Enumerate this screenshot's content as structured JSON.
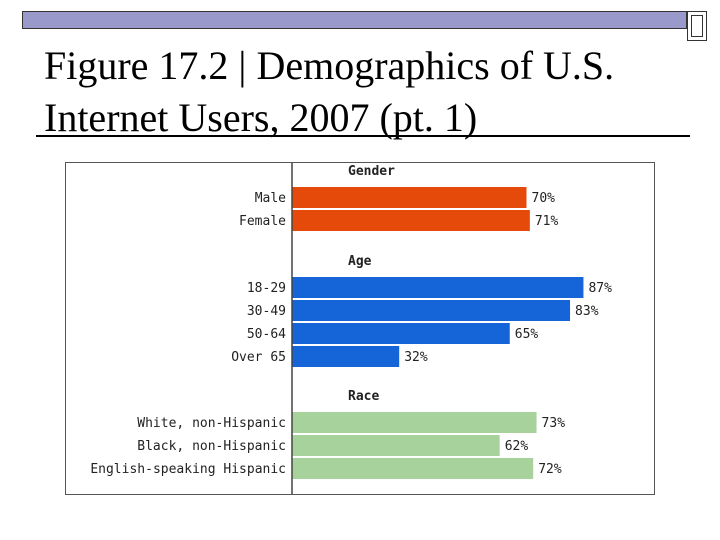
{
  "slide": {
    "title_line1": "Figure 17.2 | Demographics of U.S.",
    "title_line2": "Internet Users, 2007 (pt. 1)",
    "colors": {
      "topbar": "#9999cc"
    }
  },
  "chart_data": {
    "type": "bar",
    "orientation": "horizontal",
    "unit": "%",
    "xlim": [
      0,
      100
    ],
    "groups": [
      {
        "title": "Gender",
        "color": "#e64a0a",
        "categories": [
          "Male",
          "Female"
        ],
        "values": [
          70,
          71
        ],
        "labels": [
          "70%",
          "71%"
        ]
      },
      {
        "title": "Age",
        "color": "#1565d8",
        "categories": [
          "18-29",
          "30-49",
          "50-64",
          "Over 65"
        ],
        "values": [
          87,
          83,
          65,
          32
        ],
        "labels": [
          "87%",
          "83%",
          "65%",
          "32%"
        ]
      },
      {
        "title": "Race",
        "color": "#a8d29c",
        "categories": [
          "White, non-Hispanic",
          "Black, non-Hispanic",
          "English-speaking Hispanic"
        ],
        "values": [
          73,
          62,
          72
        ],
        "labels": [
          "73%",
          "62%",
          "72%"
        ]
      }
    ]
  }
}
